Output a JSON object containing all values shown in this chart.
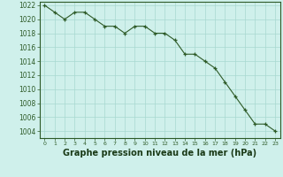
{
  "x": [
    0,
    1,
    2,
    3,
    4,
    5,
    6,
    7,
    8,
    9,
    10,
    11,
    12,
    13,
    14,
    15,
    16,
    17,
    18,
    19,
    20,
    21,
    22,
    23
  ],
  "y": [
    1022,
    1021,
    1020,
    1021,
    1021,
    1020,
    1019,
    1019,
    1018,
    1019,
    1019,
    1018,
    1018,
    1017,
    1015,
    1015,
    1014,
    1013,
    1011,
    1009,
    1007,
    1005,
    1005,
    1004
  ],
  "line_color": "#2d5a27",
  "marker_color": "#2d5a27",
  "bg_color": "#cff0eb",
  "grid_color": "#a8d8d0",
  "xlabel": "Graphe pression niveau de la mer (hPa)",
  "xlabel_fontsize": 7,
  "xlabel_color": "#1a3a17",
  "xtick_labels": [
    "0",
    "1",
    "2",
    "3",
    "4",
    "5",
    "6",
    "7",
    "8",
    "9",
    "10",
    "11",
    "12",
    "13",
    "14",
    "15",
    "16",
    "17",
    "18",
    "19",
    "20",
    "21",
    "22",
    "23"
  ],
  "ytick_start": 1004,
  "ytick_end": 1022,
  "ytick_step": 2,
  "ylim": [
    1003.0,
    1022.5
  ],
  "xlim": [
    -0.5,
    23.5
  ]
}
